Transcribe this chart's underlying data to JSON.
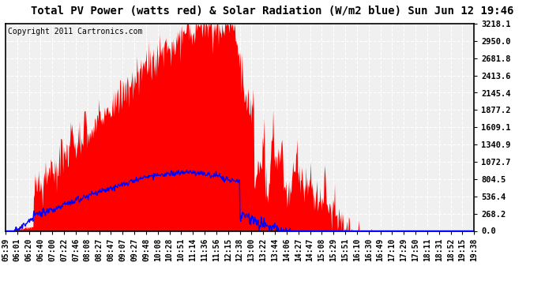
{
  "title": "Total PV Power (watts red) & Solar Radiation (W/m2 blue) Sun Jun 12 19:46",
  "copyright_text": "Copyright 2011 Cartronics.com",
  "y_tick_values": [
    0.0,
    268.2,
    536.4,
    804.5,
    1072.7,
    1340.9,
    1609.1,
    1877.2,
    2145.4,
    2413.6,
    2681.8,
    2950.0,
    3218.1
  ],
  "y_max": 3218.1,
  "y_min": 0.0,
  "background_color": "#ffffff",
  "plot_bg_color": "#f0f0f0",
  "grid_color": "#ffffff",
  "red_fill_color": "#ff0000",
  "blue_line_color": "#0000ff",
  "x_labels": [
    "05:39",
    "06:01",
    "06:20",
    "06:40",
    "07:00",
    "07:22",
    "07:46",
    "08:08",
    "08:27",
    "08:47",
    "09:07",
    "09:27",
    "09:48",
    "10:08",
    "10:28",
    "10:51",
    "11:14",
    "11:36",
    "11:56",
    "12:15",
    "12:38",
    "13:00",
    "13:22",
    "13:44",
    "14:06",
    "14:27",
    "14:47",
    "15:08",
    "15:29",
    "15:51",
    "16:10",
    "16:30",
    "16:49",
    "17:10",
    "17:29",
    "17:50",
    "18:11",
    "18:31",
    "18:52",
    "19:15",
    "19:38"
  ],
  "n_points": 800,
  "title_fontsize": 10,
  "tick_fontsize": 7.5,
  "copyright_fontsize": 7
}
